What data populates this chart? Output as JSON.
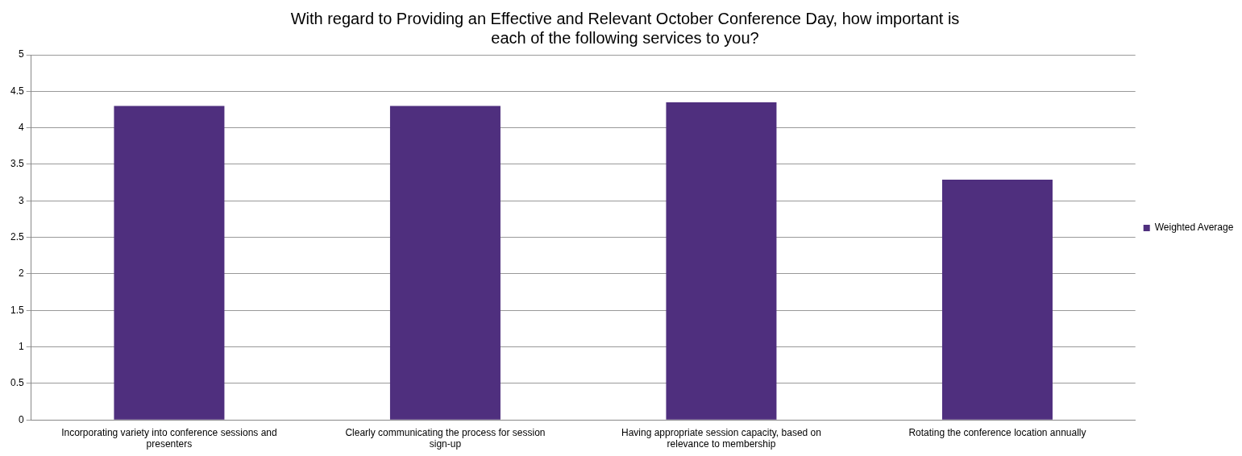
{
  "chart_data": {
    "type": "bar",
    "title": "With regard to Providing an Effective and Relevant October Conference Day, how important is each of the following services to you?",
    "categories": [
      "Incorporating variety into conference sessions and presenters",
      "Clearly communicating the process for session sign-up",
      "Having appropriate session capacity, based on relevance to membership",
      "Rotating the conference location annually"
    ],
    "series": [
      {
        "name": "Weighted Average",
        "color": "#4f2f7e",
        "values": [
          4.3,
          4.3,
          4.35,
          3.29
        ]
      }
    ],
    "ylim": [
      0,
      5
    ],
    "yticks": [
      0,
      0.5,
      1,
      1.5,
      2,
      2.5,
      3,
      3.5,
      4,
      4.5,
      5
    ],
    "grid": "y",
    "legend": "right"
  }
}
